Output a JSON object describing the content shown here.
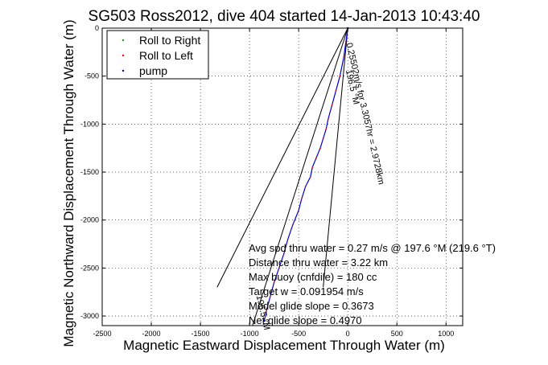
{
  "chart_data": {
    "type": "scatter",
    "title": "SG503 Ross2012, dive 404 started 14-Jan-2013 10:43:40",
    "xlabel": "Magnetic Eastward Displacement Through Water (m)",
    "ylabel": "Magnetic Northward Displacement Through Water (m)",
    "xlim": [
      -2500,
      1170
    ],
    "ylim": [
      -3100,
      0
    ],
    "xticks": [
      -2500,
      -2000,
      -1500,
      -1000,
      -500,
      0,
      500,
      1000
    ],
    "xtick_labels": [
      "-2500",
      "-2000",
      "-1500",
      "-1000",
      "-500",
      "0",
      "500",
      "1000"
    ],
    "yticks": [
      0,
      -500,
      -1000,
      -1500,
      -2000,
      -2500,
      -3000
    ],
    "ytick_labels": [
      "0",
      "-500",
      "-1000",
      "-1500",
      "-2000",
      "-2500",
      "-3000"
    ],
    "legend": {
      "placement": "top-left",
      "entries": [
        {
          "label": "Roll to Right",
          "color": "#00aa00"
        },
        {
          "label": "Roll to Left",
          "color": "#ff0000"
        },
        {
          "label": "pump",
          "color": "#000080"
        }
      ]
    },
    "track": {
      "color": "#0000cc",
      "points": [
        [
          0,
          0
        ],
        [
          -20,
          -150
        ],
        [
          -40,
          -300
        ],
        [
          -80,
          -500
        ],
        [
          -120,
          -650
        ],
        [
          -160,
          -800
        ],
        [
          -200,
          -950
        ],
        [
          -220,
          -1050
        ],
        [
          -250,
          -1150
        ],
        [
          -280,
          -1250
        ],
        [
          -320,
          -1350
        ],
        [
          -360,
          -1450
        ],
        [
          -380,
          -1550
        ],
        [
          -430,
          -1650
        ],
        [
          -470,
          -1780
        ],
        [
          -500,
          -1900
        ],
        [
          -560,
          -2050
        ],
        [
          -610,
          -2200
        ],
        [
          -650,
          -2350
        ],
        [
          -700,
          -2500
        ],
        [
          -750,
          -2650
        ],
        [
          -790,
          -2800
        ],
        [
          -830,
          -2950
        ],
        [
          -850,
          -3050
        ]
      ]
    },
    "pump_points": [
      [
        0,
        0
      ],
      [
        -850,
        -3050
      ]
    ],
    "lines": [
      {
        "name": "current-line",
        "color": "#000000",
        "points": [
          [
            0,
            0
          ],
          [
            -1330,
            -2700
          ]
        ]
      },
      {
        "name": "heading-line",
        "color": "#000000",
        "points": [
          [
            0,
            0
          ],
          [
            -970,
            -3100
          ]
        ]
      },
      {
        "name": "return-line",
        "color": "#000000",
        "points": [
          [
            0,
            0
          ],
          [
            -250,
            -2700
          ]
        ]
      }
    ],
    "annotations": [
      {
        "text": "196.5 °M",
        "x": -20,
        "y": -440,
        "angle": 77
      },
      {
        "text": "0.25502m/s for 3.3057hr = 2.9728km",
        "x": -15,
        "y": -160,
        "angle": 77
      },
      {
        "text": "196.5 °M",
        "x": -930,
        "y": -2790,
        "angle": 77
      }
    ],
    "info_lines": [
      "Avg spd thru water = 0.27 m/s @ 197.6   °M (219.6 °T)",
      "Distance thru water = 3.22 km",
      "Max buoy (cnfdile) = 180 cc",
      "Target w = 0.091954 m/s",
      "Model glide slope = 0.3673",
      "Net glide slope = 0.4970"
    ]
  }
}
